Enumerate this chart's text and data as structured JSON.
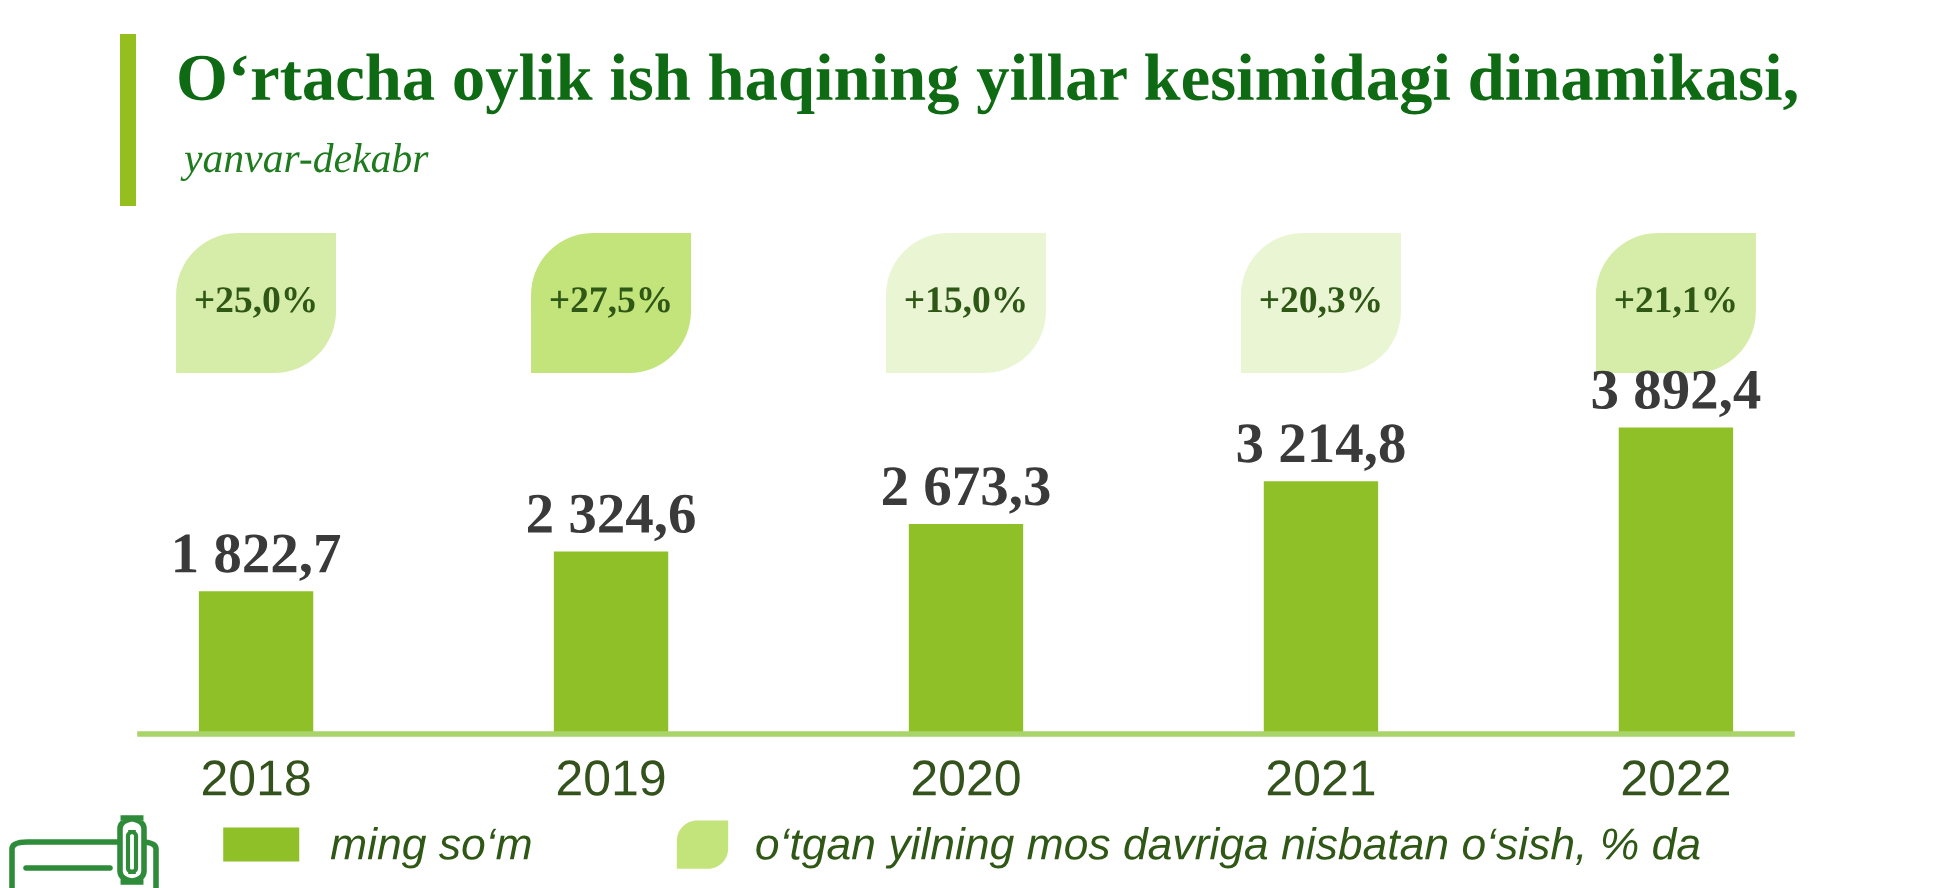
{
  "chart_data": [
    {
      "type": "other",
      "categories": [
        "2018",
        "2019",
        "2020",
        "2021",
        "2022"
      ],
      "series": [
        {
          "name": "o‘tgan yilning mos davriga nisbatan o‘sish, % da",
          "color": "#c3e47a",
          "colors": [
            "#d6eda9",
            "#c3e47a",
            "#eaf5d4",
            "#eaf5d4",
            "#d6eda9"
          ],
          "values": [
            25.0,
            27.5,
            15.0,
            20.3,
            21.1
          ],
          "value_labels": [
            "+25,0%",
            "+27,5%",
            "+15,0%",
            "+20,3%",
            "+21,1%"
          ]
        }
      ],
      "legend": "bottom"
    },
    {
      "type": "bar",
      "title": "O‘rtacha oylik ish haqining yillar kesimidagi dinamikasi,",
      "subtitle": "yanvar-dekabr",
      "categories": [
        "2018",
        "2019",
        "2020",
        "2021",
        "2022"
      ],
      "series": [
        {
          "name": "ming so‘m",
          "color": "#8fc027",
          "values": [
            1822.7,
            2324.6,
            2673.3,
            3214.8,
            3892.4
          ],
          "value_labels": [
            "1 822,7",
            "2 324,6",
            "2 673,3",
            "3 214,8",
            "3 892,4"
          ]
        }
      ],
      "legend": "bottom"
    }
  ]
}
